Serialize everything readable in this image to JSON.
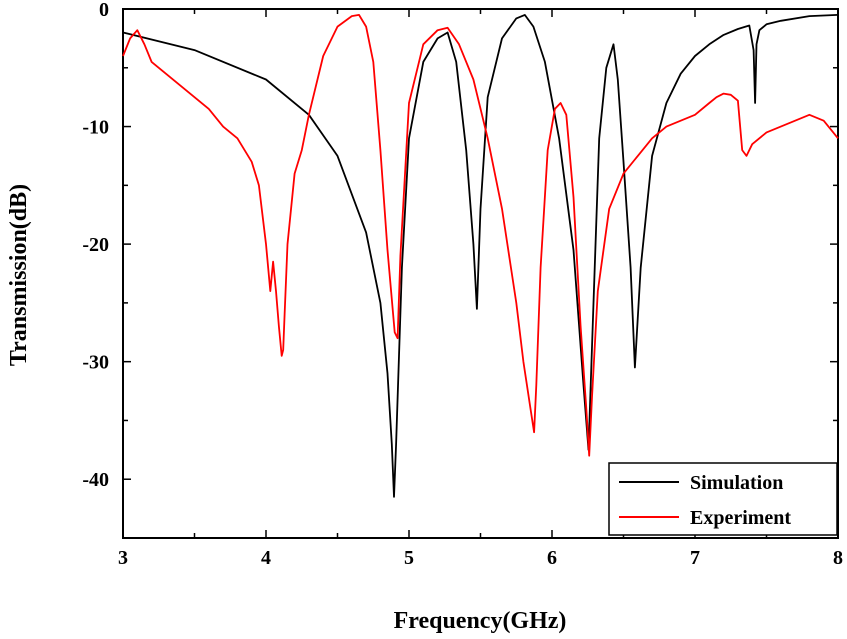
{
  "chart_data": {
    "type": "line",
    "xlabel": "Frequency(GHz)",
    "ylabel": "Transmission(dB)",
    "xlim": [
      3,
      8
    ],
    "ylim": [
      -45,
      0
    ],
    "xticks": [
      "3",
      "4",
      "5",
      "6",
      "7",
      "8"
    ],
    "yticks": [
      "0",
      "-10",
      "-20",
      "-30",
      "-40"
    ],
    "grid": false,
    "legend_position": "bottom-right",
    "series": [
      {
        "name": "Simulation",
        "color": "#000000",
        "x": [
          3.0,
          3.5,
          4.0,
          4.3,
          4.5,
          4.7,
          4.8,
          4.85,
          4.88,
          4.895,
          4.91,
          4.95,
          5.0,
          5.1,
          5.2,
          5.27,
          5.33,
          5.4,
          5.45,
          5.475,
          5.5,
          5.55,
          5.65,
          5.75,
          5.81,
          5.87,
          5.95,
          6.05,
          6.15,
          6.22,
          6.255,
          6.29,
          6.33,
          6.38,
          6.43,
          6.46,
          6.5,
          6.55,
          6.58,
          6.62,
          6.7,
          6.8,
          6.9,
          7.0,
          7.1,
          7.2,
          7.3,
          7.38,
          7.41,
          7.42,
          7.43,
          7.45,
          7.5,
          7.6,
          7.8,
          8.0
        ],
        "y": [
          -2.0,
          -3.5,
          -6.0,
          -9.0,
          -12.5,
          -19.0,
          -25.0,
          -31.0,
          -37.0,
          -41.5,
          -37.0,
          -22.0,
          -11.0,
          -4.5,
          -2.5,
          -2.0,
          -4.5,
          -12.0,
          -20.0,
          -25.5,
          -17.0,
          -7.5,
          -2.5,
          -0.8,
          -0.5,
          -1.5,
          -4.5,
          -11.0,
          -20.5,
          -32.0,
          -37.5,
          -25.0,
          -11.0,
          -5.0,
          -3.0,
          -6.0,
          -13.0,
          -22.0,
          -30.5,
          -22.0,
          -12.5,
          -8.0,
          -5.5,
          -4.0,
          -3.0,
          -2.2,
          -1.7,
          -1.4,
          -3.5,
          -8.0,
          -3.0,
          -1.8,
          -1.3,
          -1.0,
          -0.6,
          -0.5
        ]
      },
      {
        "name": "Experiment",
        "color": "#ff0000",
        "x": [
          3.0,
          3.05,
          3.1,
          3.15,
          3.2,
          3.3,
          3.4,
          3.5,
          3.6,
          3.7,
          3.8,
          3.9,
          3.95,
          4.0,
          4.03,
          4.05,
          4.07,
          4.09,
          4.11,
          4.12,
          4.13,
          4.15,
          4.2,
          4.25,
          4.3,
          4.4,
          4.5,
          4.6,
          4.65,
          4.7,
          4.75,
          4.8,
          4.85,
          4.9,
          4.92,
          4.94,
          5.0,
          5.1,
          5.2,
          5.27,
          5.35,
          5.45,
          5.55,
          5.65,
          5.75,
          5.8,
          5.85,
          5.875,
          5.89,
          5.92,
          5.97,
          6.02,
          6.06,
          6.1,
          6.15,
          6.2,
          6.24,
          6.26,
          6.28,
          6.32,
          6.4,
          6.5,
          6.6,
          6.7,
          6.8,
          6.9,
          7.0,
          7.1,
          7.15,
          7.2,
          7.25,
          7.3,
          7.33,
          7.36,
          7.4,
          7.5,
          7.6,
          7.7,
          7.8,
          7.9,
          8.0
        ],
        "y": [
          -4.0,
          -2.5,
          -1.8,
          -3.0,
          -4.5,
          -5.5,
          -6.5,
          -7.5,
          -8.5,
          -10.0,
          -11.0,
          -13.0,
          -15.0,
          -20.0,
          -24.0,
          -21.5,
          -24.0,
          -27.0,
          -29.5,
          -29.0,
          -26.0,
          -20.0,
          -14.0,
          -12.0,
          -9.0,
          -4.0,
          -1.5,
          -0.6,
          -0.5,
          -1.5,
          -4.5,
          -12.0,
          -20.5,
          -27.5,
          -28.0,
          -21.0,
          -8.0,
          -3.0,
          -1.8,
          -1.6,
          -3.0,
          -6.0,
          -11.0,
          -17.0,
          -25.0,
          -30.0,
          -34.0,
          -36.0,
          -32.0,
          -22.0,
          -12.0,
          -8.5,
          -8.0,
          -9.0,
          -16.0,
          -27.0,
          -34.0,
          -38.0,
          -33.0,
          -24.0,
          -17.0,
          -14.0,
          -12.5,
          -11.0,
          -10.0,
          -9.5,
          -9.0,
          -8.0,
          -7.5,
          -7.2,
          -7.3,
          -7.8,
          -12.0,
          -12.5,
          -11.5,
          -10.5,
          -10.0,
          -9.5,
          -9.0,
          -9.5,
          -11.0
        ]
      }
    ]
  }
}
